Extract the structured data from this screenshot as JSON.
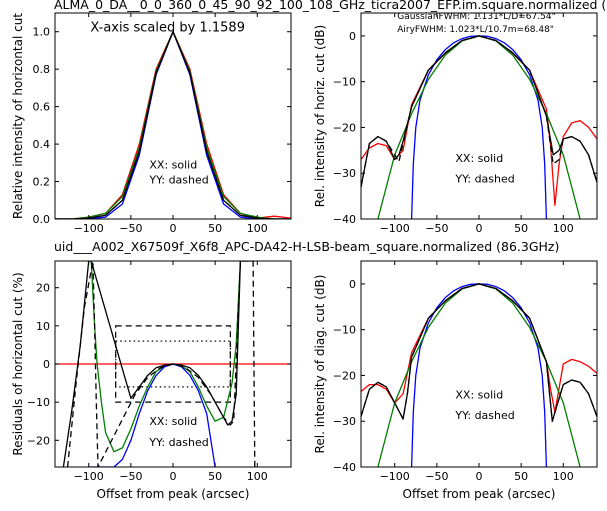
{
  "header": {
    "top_title": "ALMA_0_DA__0_0_360_0_45_90_92_100_108_GHz_ticra2007_EFP.im.square.normalized (",
    "mid_title": "uid___A002_X67509f_X6f8_APC-DA42-H-LSB-beam_square.normalized (86.3GHz)"
  },
  "colors": {
    "red": "#ff0000",
    "blue": "#0000ff",
    "green": "#008000",
    "black": "#000000",
    "mid_title": "#ff0000"
  },
  "chart_data": [
    {
      "id": "tl",
      "type": "line",
      "xlabel": "",
      "ylabel": "Relative intensity of horizontal cut",
      "xlim": [
        -140,
        140
      ],
      "ylim": [
        0,
        1.1
      ],
      "xticks": [
        -100,
        -50,
        0,
        50,
        100
      ],
      "yticks": [
        0.0,
        0.2,
        0.4,
        0.6,
        0.8,
        1.0
      ],
      "ytick_labels": [
        "0.0",
        "0.2",
        "0.4",
        "0.6",
        "0.8",
        "1.0"
      ],
      "annotations": [
        {
          "text": "X-axis scaled by 1.1589",
          "x": -98,
          "y": 1.0
        },
        {
          "text": "XX: solid",
          "x": -28,
          "y": 0.27
        },
        {
          "text": "YY: dashed",
          "x": -28,
          "y": 0.19
        }
      ],
      "series": [
        {
          "color": "red",
          "dash": false,
          "x": [
            -140,
            -120,
            -100,
            -80,
            -60,
            -40,
            -20,
            0,
            20,
            40,
            60,
            80,
            100,
            120,
            140
          ],
          "y": [
            0.0,
            0.0,
            0.01,
            0.03,
            0.13,
            0.4,
            0.8,
            1.0,
            0.8,
            0.4,
            0.13,
            0.03,
            0.005,
            0.015,
            0.005
          ]
        },
        {
          "color": "blue",
          "dash": false,
          "x": [
            -140,
            -120,
            -100,
            -80,
            -60,
            -40,
            -20,
            0,
            20,
            40,
            60,
            80,
            100,
            120,
            140
          ],
          "y": [
            0.0,
            0.0,
            0.0,
            0.01,
            0.08,
            0.34,
            0.77,
            1.0,
            0.77,
            0.34,
            0.08,
            0.01,
            0.0,
            0.0,
            0.0
          ]
        },
        {
          "color": "green",
          "dash": false,
          "x": [
            -140,
            -120,
            -100,
            -80,
            -60,
            -40,
            -20,
            0,
            20,
            40,
            60,
            80,
            100,
            120,
            140
          ],
          "y": [
            0.0,
            0.0,
            0.01,
            0.03,
            0.12,
            0.38,
            0.79,
            1.0,
            0.79,
            0.38,
            0.12,
            0.03,
            0.01,
            0.0,
            0.0
          ]
        },
        {
          "color": "black",
          "dash": false,
          "x": [
            -140,
            -120,
            -100,
            -80,
            -60,
            -40,
            -20,
            0,
            20,
            40,
            60,
            80,
            100,
            120,
            140
          ],
          "y": [
            0.0,
            0.0,
            0.005,
            0.02,
            0.1,
            0.36,
            0.78,
            1.0,
            0.78,
            0.36,
            0.1,
            0.02,
            0.005,
            0.0,
            0.0
          ]
        },
        {
          "color": "black",
          "dash": true,
          "x": [
            -140,
            -120,
            -100,
            -80,
            -60,
            -40,
            -20,
            0,
            20,
            40,
            60,
            80,
            100,
            120,
            140
          ],
          "y": [
            0.0,
            0.0,
            0.005,
            0.02,
            0.1,
            0.36,
            0.78,
            1.0,
            0.78,
            0.36,
            0.1,
            0.02,
            0.005,
            0.0,
            0.0
          ]
        }
      ]
    },
    {
      "id": "tr",
      "type": "line",
      "xlabel": "",
      "ylabel": "Rel. intensity of horiz. cut (dB)",
      "xlim": [
        -140,
        140
      ],
      "ylim": [
        -40,
        5
      ],
      "xticks": [
        -100,
        -50,
        0,
        50,
        100
      ],
      "yticks": [
        -40,
        -30,
        -20,
        -10,
        0
      ],
      "ytick_labels": [
        "−40",
        "−30",
        "−20",
        "−10",
        "0"
      ],
      "annotations": [
        {
          "text": "GaussianFWHM: 1.131*L/D=67.54\"",
          "x": -97,
          "y": 3.7,
          "color": "green",
          "small": true
        },
        {
          "text": "AiryFWHM: 1.023*L/10.7m=68.48\"",
          "x": -97,
          "y": 0.8,
          "color": "blue",
          "small": true
        },
        {
          "text": "XX: solid",
          "x": -28,
          "y": -27.5
        },
        {
          "text": "YY: dashed",
          "x": -28,
          "y": -32
        }
      ],
      "series": [
        {
          "color": "red",
          "dash": false,
          "x": [
            -140,
            -130,
            -120,
            -110,
            -100,
            -95,
            -90,
            -80,
            -60,
            -40,
            -20,
            0,
            20,
            40,
            60,
            80,
            85,
            90,
            95,
            100,
            110,
            120,
            130,
            140
          ],
          "y": [
            -27,
            -24.5,
            -23.5,
            -24,
            -27,
            -26,
            -25,
            -15,
            -7.5,
            -3.8,
            -1,
            0,
            -1,
            -3.8,
            -7.5,
            -16,
            -24,
            -37,
            -28,
            -22,
            -19,
            -18.5,
            -20,
            -22.5
          ]
        },
        {
          "color": "blue",
          "dash": false,
          "x": [
            -80,
            -78,
            -75,
            -70,
            -60,
            -50,
            -40,
            -30,
            -20,
            -10,
            0,
            10,
            20,
            30,
            40,
            50,
            60,
            70,
            75,
            78,
            80
          ],
          "y": [
            -40,
            -28,
            -20,
            -14,
            -8.5,
            -5.2,
            -3,
            -1.5,
            -0.6,
            -0.1,
            0,
            -0.1,
            -0.6,
            -1.5,
            -3,
            -5.2,
            -8.5,
            -14,
            -20,
            -28,
            -40
          ]
        },
        {
          "color": "green",
          "dash": false,
          "x": [
            -120,
            -100,
            -80,
            -60,
            -40,
            -20,
            0,
            20,
            40,
            60,
            80,
            100,
            120
          ],
          "y": [
            -40,
            -26,
            -17,
            -9.5,
            -4.2,
            -1.1,
            0,
            -1.1,
            -4.2,
            -9.5,
            -17,
            -26,
            -40
          ]
        },
        {
          "color": "black",
          "dash": false,
          "x": [
            -140,
            -130,
            -120,
            -110,
            -100,
            -95,
            -90,
            -80,
            -60,
            -40,
            -20,
            0,
            20,
            40,
            60,
            80,
            88,
            95,
            100,
            110,
            120,
            130,
            140
          ],
          "y": [
            -33,
            -23.5,
            -22,
            -23,
            -27,
            -26,
            -23,
            -15.5,
            -7.5,
            -3.7,
            -1,
            0,
            -1,
            -3.7,
            -7.5,
            -17.5,
            -26,
            -25,
            -22.5,
            -22,
            -23,
            -26,
            -32
          ]
        },
        {
          "color": "black",
          "dash": true,
          "x": [
            -140,
            -130,
            -120,
            -110,
            -100,
            -95,
            -90,
            -80,
            -60,
            -40,
            -20,
            0,
            20,
            40,
            60,
            80,
            88,
            95,
            100,
            110,
            120,
            130,
            140
          ],
          "y": [
            -33,
            -23.5,
            -22,
            -23,
            -26,
            -27.5,
            -23.5,
            -15.5,
            -7.5,
            -3.7,
            -1,
            0,
            -1,
            -3.7,
            -7.5,
            -17.5,
            -28,
            -27,
            -22.5,
            -22,
            -23,
            -26,
            -32
          ]
        }
      ]
    },
    {
      "id": "bl",
      "type": "line",
      "xlabel": "Offset from peak (arcsec)",
      "ylabel": "Residuals of horizontal cut (%)",
      "xlim": [
        -140,
        140
      ],
      "ylim": [
        -27,
        27
      ],
      "xticks": [
        -100,
        -50,
        0,
        50,
        100
      ],
      "yticks": [
        -20,
        -10,
        0,
        10,
        20
      ],
      "ytick_labels": [
        "−20",
        "−10",
        "0",
        "10",
        "20"
      ],
      "hlines": [
        {
          "y": 0,
          "color": "red"
        }
      ],
      "boxes": [
        {
          "x0": -68,
          "x1": 68,
          "y0": -10,
          "y1": 10,
          "style": "dashed"
        },
        {
          "x0": -68,
          "x1": 68,
          "y0": -6,
          "y1": 6,
          "style": "dotted"
        }
      ],
      "annotations": [
        {
          "text": "XX: solid",
          "x": -28,
          "y": -16
        },
        {
          "text": "YY: dashed",
          "x": -28,
          "y": -21.5
        }
      ],
      "series": [
        {
          "color": "green",
          "dash": false,
          "x": [
            -97,
            -93,
            -90,
            -85,
            -80,
            -70,
            -60,
            -50,
            -40,
            -30,
            -20,
            -10,
            0,
            10,
            20,
            30,
            40,
            50,
            60,
            70,
            75,
            80,
            85
          ],
          "y": [
            27,
            10,
            0,
            -10,
            -18,
            -23,
            -22,
            -17,
            -11,
            -6,
            -2,
            -0.5,
            0,
            -0.5,
            -2,
            -6,
            -11,
            -15,
            -14,
            -5,
            5,
            27,
            27
          ]
        },
        {
          "color": "blue",
          "dash": false,
          "x": [
            -100,
            -95,
            -90,
            -80,
            -70,
            -60,
            -50,
            -40,
            -30,
            -20,
            -10,
            0,
            10,
            20,
            30,
            40,
            50
          ],
          "y": [
            -27,
            -27,
            -27,
            -27,
            -27,
            -25,
            -20,
            -13,
            -7,
            -3,
            -0.7,
            0,
            -0.7,
            -3,
            -7,
            -13,
            -27
          ]
        },
        {
          "color": "black",
          "dash": false,
          "x": [
            -130,
            -120,
            -110,
            -100,
            -97,
            -50,
            -40,
            -30,
            -20,
            -10,
            0,
            10,
            20,
            30,
            40,
            50,
            60,
            65,
            70,
            75,
            80,
            90,
            97
          ],
          "y": [
            -27,
            -12,
            5,
            27,
            27,
            -9,
            -6,
            -3,
            -1,
            -0.3,
            0,
            -0.3,
            -1,
            -3,
            -6,
            -10,
            -14,
            -16,
            -15,
            -8,
            27,
            27,
            27
          ]
        },
        {
          "color": "black",
          "dash": true,
          "x": [
            -125,
            -115,
            -105,
            -95,
            -93,
            -91,
            -89,
            -45,
            -30,
            -15,
            0,
            15,
            30,
            45,
            60,
            68,
            72,
            80,
            90,
            95,
            97
          ],
          "y": [
            -27,
            -5,
            15,
            27,
            10,
            -10,
            -27,
            -8,
            -3.5,
            -1,
            0,
            -1,
            -3.5,
            -8,
            -14,
            -16,
            -15,
            27,
            27,
            27,
            -27
          ]
        }
      ]
    },
    {
      "id": "br",
      "type": "line",
      "xlabel": "Offset from peak (arcsec)",
      "ylabel": "Rel. intensity of diag. cut (dB)",
      "xlim": [
        -140,
        140
      ],
      "ylim": [
        -40,
        5
      ],
      "xticks": [
        -100,
        -50,
        0,
        50,
        100
      ],
      "yticks": [
        -40,
        -30,
        -20,
        -10,
        0
      ],
      "ytick_labels": [
        "−40",
        "−30",
        "−20",
        "−10",
        "0"
      ],
      "annotations": [
        {
          "text": "XX: solid",
          "x": -28,
          "y": -25
        },
        {
          "text": "YY: dashed",
          "x": -28,
          "y": -29.5
        }
      ],
      "series": [
        {
          "color": "red",
          "dash": false,
          "x": [
            -140,
            -130,
            -120,
            -110,
            -100,
            -90,
            -80,
            -60,
            -40,
            -20,
            0,
            20,
            40,
            60,
            80,
            85,
            90,
            100,
            110,
            120,
            130,
            140
          ],
          "y": [
            -23.5,
            -22,
            -22,
            -23,
            -26,
            -24,
            -15,
            -7.5,
            -3.7,
            -1,
            0,
            -1,
            -3.7,
            -7.5,
            -17,
            -23,
            -28,
            -17.5,
            -16.5,
            -17,
            -18,
            -19.5
          ]
        },
        {
          "color": "blue",
          "dash": false,
          "x": [
            -80,
            -78,
            -75,
            -70,
            -60,
            -50,
            -40,
            -30,
            -20,
            -10,
            0,
            10,
            20,
            30,
            40,
            50,
            60,
            70,
            75,
            78,
            80
          ],
          "y": [
            -40,
            -28,
            -20,
            -14,
            -8.5,
            -5.2,
            -3,
            -1.5,
            -0.6,
            -0.1,
            0,
            -0.1,
            -0.6,
            -1.5,
            -3,
            -5.2,
            -8.5,
            -14,
            -20,
            -28,
            -40
          ]
        },
        {
          "color": "green",
          "dash": false,
          "x": [
            -120,
            -100,
            -80,
            -60,
            -40,
            -20,
            0,
            20,
            40,
            60,
            80,
            100,
            120
          ],
          "y": [
            -40,
            -26,
            -17,
            -9.5,
            -4.2,
            -1.1,
            0,
            -1.1,
            -4.2,
            -9.5,
            -17,
            -26,
            -40
          ]
        },
        {
          "color": "black",
          "dash": false,
          "x": [
            -140,
            -130,
            -120,
            -110,
            -100,
            -90,
            -85,
            -80,
            -60,
            -40,
            -20,
            0,
            20,
            40,
            60,
            80,
            87,
            95,
            100,
            110,
            120,
            130,
            140
          ],
          "y": [
            -29,
            -23,
            -21.5,
            -22.5,
            -26,
            -29.5,
            -24,
            -16,
            -7.5,
            -3.7,
            -1,
            0,
            -1,
            -3.7,
            -7.5,
            -17,
            -30,
            -25,
            -22,
            -21,
            -21.5,
            -24,
            -29
          ]
        },
        {
          "color": "black",
          "dash": true,
          "x": [
            -140,
            -130,
            -120,
            -110,
            -100,
            -90,
            -85,
            -80,
            -60,
            -40,
            -20,
            0,
            20,
            40,
            60,
            80,
            87,
            95,
            100,
            110,
            120,
            130,
            140
          ],
          "y": [
            -29,
            -23,
            -21.5,
            -22.5,
            -26,
            -29.5,
            -24,
            -16,
            -7.5,
            -3.7,
            -1,
            0,
            -1,
            -3.7,
            -7.5,
            -17,
            -30,
            -25,
            -22,
            -21,
            -21.5,
            -24,
            -29
          ]
        }
      ]
    }
  ]
}
